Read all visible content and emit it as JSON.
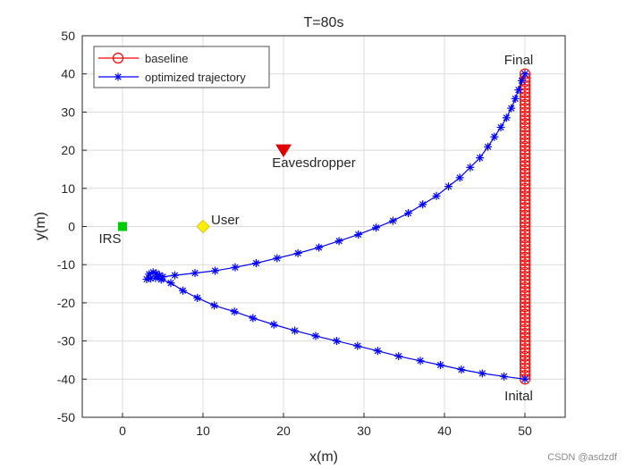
{
  "chart_data": {
    "type": "line",
    "title": "T=80s",
    "xlabel": "x(m)",
    "ylabel": "y(m)",
    "xlim": [
      -5,
      55
    ],
    "ylim": [
      -50,
      50
    ],
    "xticks": [
      0,
      10,
      20,
      30,
      40,
      50
    ],
    "yticks": [
      -50,
      -40,
      -30,
      -20,
      -10,
      0,
      10,
      20,
      30,
      40,
      50
    ],
    "grid": true,
    "legend_position": "top-left",
    "series": [
      {
        "name": "baseline",
        "color": "#ff0000",
        "marker": "circle",
        "x": [
          50,
          50,
          50,
          50,
          50,
          50,
          50,
          50,
          50,
          50,
          50,
          50,
          50,
          50,
          50,
          50,
          50,
          50,
          50,
          50,
          50,
          50,
          50,
          50,
          50,
          50,
          50,
          50,
          50,
          50,
          50,
          50,
          50,
          50,
          50,
          50,
          50,
          50,
          50,
          50,
          50,
          50,
          50,
          50,
          50,
          50,
          50,
          50,
          50,
          50,
          50,
          50,
          50,
          50,
          50,
          50,
          50,
          50,
          50,
          50,
          50,
          50,
          50,
          50,
          50,
          50,
          50,
          50,
          50,
          50,
          50,
          50,
          50,
          50,
          50,
          50,
          50,
          50,
          50,
          50,
          50
        ],
        "y": [
          -40,
          -39,
          -38,
          -37,
          -36,
          -35,
          -34,
          -33,
          -32,
          -31,
          -30,
          -29,
          -28,
          -27,
          -26,
          -25,
          -24,
          -23,
          -22,
          -21,
          -20,
          -19,
          -18,
          -17,
          -16,
          -15,
          -14,
          -13,
          -12,
          -11,
          -10,
          -9,
          -8,
          -7,
          -6,
          -5,
          -4,
          -3,
          -2,
          -1,
          0,
          1,
          2,
          3,
          4,
          5,
          6,
          7,
          8,
          9,
          10,
          11,
          12,
          13,
          14,
          15,
          16,
          17,
          18,
          19,
          20,
          21,
          22,
          23,
          24,
          25,
          26,
          27,
          28,
          29,
          30,
          31,
          32,
          33,
          34,
          35,
          36,
          37,
          38,
          39,
          40
        ]
      },
      {
        "name": "optimized trajectory",
        "color": "#0000ff",
        "marker": "asterisk",
        "x": [
          50,
          47.4,
          44.7,
          42.1,
          39.5,
          37.0,
          34.3,
          31.7,
          29.2,
          26.6,
          24.0,
          21.4,
          18.8,
          16.2,
          13.9,
          11.4,
          9.3,
          7.5,
          6.0,
          4.8,
          4.1,
          3.5,
          3.0,
          3.3,
          3.8,
          4.2,
          4.6,
          5.0,
          6.5,
          9.0,
          11.5,
          14.0,
          16.6,
          19.2,
          21.8,
          24.4,
          26.9,
          29.3,
          31.5,
          33.6,
          35.5,
          37.3,
          39.0,
          40.5,
          41.9,
          43.2,
          44.4,
          45.4,
          46.2,
          47.0,
          47.7,
          48.3,
          48.8,
          49.2,
          49.6,
          50
        ],
        "y": [
          -40,
          -39.3,
          -38.5,
          -37.5,
          -36.3,
          -35.2,
          -34.0,
          -32.6,
          -31.3,
          -30.0,
          -28.7,
          -27.3,
          -25.7,
          -24.0,
          -22.3,
          -20.7,
          -18.7,
          -16.8,
          -14.8,
          -13.9,
          -13.5,
          -13.6,
          -13.8,
          -12.5,
          -12.0,
          -12.3,
          -12.8,
          -13.2,
          -12.8,
          -12.2,
          -11.6,
          -10.7,
          -9.6,
          -8.3,
          -7.0,
          -5.5,
          -3.8,
          -2.1,
          -0.3,
          1.5,
          3.5,
          5.8,
          8.0,
          10.5,
          12.8,
          15.5,
          18.0,
          20.9,
          23.5,
          26.0,
          28.5,
          31.0,
          33.5,
          35.8,
          38.2,
          40
        ]
      }
    ],
    "points": [
      {
        "label": "IRS",
        "x": 0,
        "y": 0,
        "marker": "square",
        "color": "#00cc00"
      },
      {
        "label": "User",
        "x": 10,
        "y": 0,
        "marker": "diamond",
        "color": "#ffee00"
      },
      {
        "label": "Eavesdropper",
        "x": 20,
        "y": 20,
        "marker": "triangle-down",
        "color": "#e00000"
      }
    ],
    "annotations": [
      "Final",
      "Inital"
    ]
  },
  "watermark": "CSDN @asdzdf"
}
